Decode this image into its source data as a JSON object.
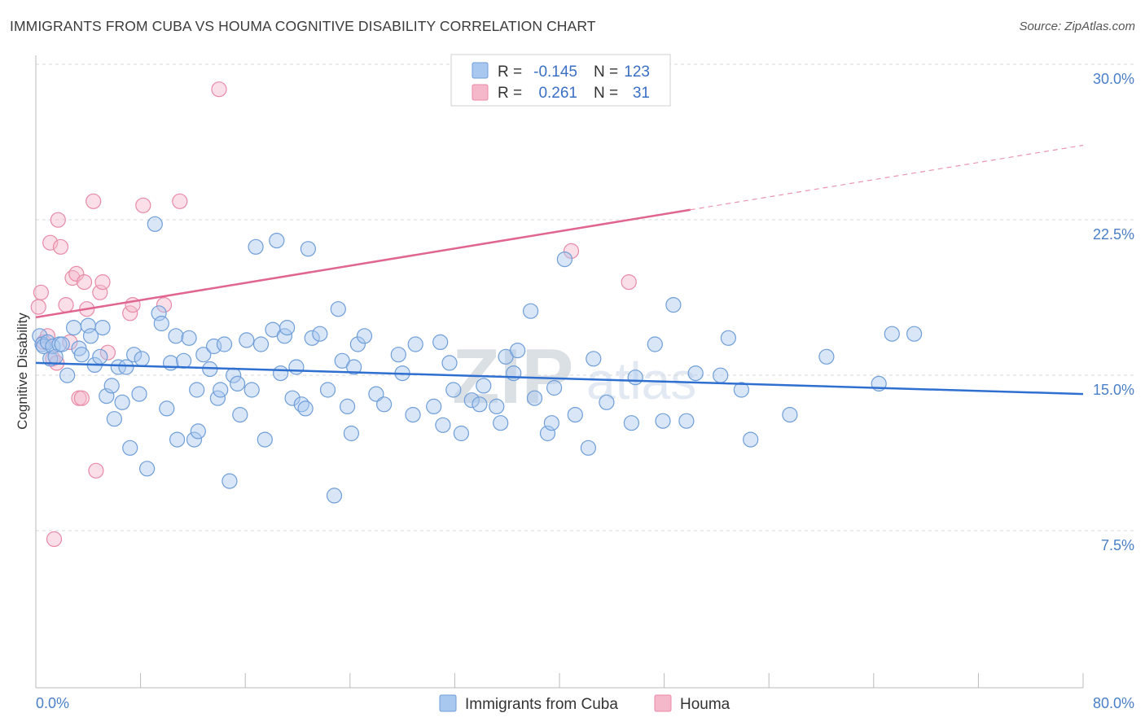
{
  "header": {
    "title": "IMMIGRANTS FROM CUBA VS HOUMA COGNITIVE DISABILITY CORRELATION CHART",
    "source": "Source: ZipAtlas.com"
  },
  "colors": {
    "blue_fill": "#a9c8f0",
    "blue_stroke": "#6f9ed8",
    "blue_line": "#2f6fd0",
    "pink_fill": "#f5b8cb",
    "pink_stroke": "#e88aa6",
    "pink_line": "#e06690",
    "grid": "#d8d8d8",
    "tick_text": "#4a7fc8"
  },
  "watermark": {
    "bold": "ZIP",
    "light": "atlas"
  },
  "chart_data": {
    "type": "scatter",
    "title": "IMMIGRANTS FROM CUBA VS HOUMA COGNITIVE DISABILITY CORRELATION CHART",
    "xlabel": "",
    "ylabel": "Cognitive Disability",
    "xlim": [
      0,
      80
    ],
    "ylim": [
      0,
      31.5
    ],
    "x_tick_labels": {
      "left": "0.0%",
      "right": "80.0%"
    },
    "y_ticks": [
      {
        "value": 30.0,
        "label": "30.0%"
      },
      {
        "value": 22.5,
        "label": "22.5%"
      },
      {
        "value": 15.0,
        "label": "15.0%"
      },
      {
        "value": 7.5,
        "label": "7.5%"
      }
    ],
    "legend": {
      "position": "top-center",
      "rows": [
        {
          "r_label": "R =",
          "r_value": "-0.145",
          "n_label": "N =",
          "n_value": "123"
        },
        {
          "r_label": "R =",
          "r_value": "0.261",
          "n_label": "N =",
          "n_value": "31"
        }
      ]
    },
    "series": [
      {
        "name": "Immigrants from Cuba",
        "trend": {
          "x": [
            0,
            80
          ],
          "y": [
            16.3,
            14.8
          ],
          "dashed_from": null
        },
        "points": [
          [
            0.3,
            17.6
          ],
          [
            0.5,
            17.2
          ],
          [
            0.6,
            17.1
          ],
          [
            0.9,
            17.3
          ],
          [
            1.1,
            16.5
          ],
          [
            1.3,
            17.1
          ],
          [
            1.5,
            16.6
          ],
          [
            1.8,
            17.2
          ],
          [
            2.0,
            17.2
          ],
          [
            2.4,
            15.7
          ],
          [
            2.9,
            18.0
          ],
          [
            3.3,
            17.0
          ],
          [
            3.5,
            16.7
          ],
          [
            4.0,
            18.1
          ],
          [
            4.2,
            17.6
          ],
          [
            4.5,
            16.2
          ],
          [
            4.9,
            16.6
          ],
          [
            5.1,
            18.0
          ],
          [
            5.4,
            14.7
          ],
          [
            5.8,
            15.2
          ],
          [
            6.0,
            13.6
          ],
          [
            6.3,
            16.1
          ],
          [
            6.6,
            14.4
          ],
          [
            6.9,
            16.1
          ],
          [
            7.2,
            12.2
          ],
          [
            7.5,
            16.7
          ],
          [
            7.9,
            14.8
          ],
          [
            8.1,
            16.5
          ],
          [
            8.5,
            11.2
          ],
          [
            9.1,
            23.0
          ],
          [
            9.4,
            18.7
          ],
          [
            9.6,
            18.2
          ],
          [
            10.0,
            14.1
          ],
          [
            10.3,
            16.3
          ],
          [
            10.7,
            17.6
          ],
          [
            10.8,
            12.6
          ],
          [
            11.3,
            16.4
          ],
          [
            11.7,
            17.5
          ],
          [
            12.1,
            12.6
          ],
          [
            12.3,
            15.0
          ],
          [
            12.4,
            13.0
          ],
          [
            12.8,
            16.7
          ],
          [
            13.3,
            16.0
          ],
          [
            13.6,
            17.1
          ],
          [
            13.9,
            14.6
          ],
          [
            14.1,
            15.0
          ],
          [
            14.4,
            17.2
          ],
          [
            14.8,
            10.6
          ],
          [
            15.1,
            15.7
          ],
          [
            15.4,
            15.3
          ],
          [
            15.6,
            13.8
          ],
          [
            16.1,
            17.4
          ],
          [
            16.5,
            15.0
          ],
          [
            16.8,
            21.9
          ],
          [
            17.2,
            17.2
          ],
          [
            17.5,
            12.6
          ],
          [
            18.1,
            17.9
          ],
          [
            18.4,
            22.2
          ],
          [
            18.7,
            15.8
          ],
          [
            19.0,
            17.6
          ],
          [
            19.2,
            18.0
          ],
          [
            19.6,
            14.6
          ],
          [
            19.9,
            16.1
          ],
          [
            20.3,
            14.3
          ],
          [
            20.6,
            14.1
          ],
          [
            20.8,
            21.8
          ],
          [
            21.1,
            17.5
          ],
          [
            21.7,
            17.7
          ],
          [
            22.3,
            15.0
          ],
          [
            22.8,
            9.9
          ],
          [
            23.1,
            18.9
          ],
          [
            23.4,
            16.4
          ],
          [
            23.8,
            14.2
          ],
          [
            24.1,
            12.9
          ],
          [
            24.3,
            16.1
          ],
          [
            24.6,
            17.2
          ],
          [
            25.1,
            17.6
          ],
          [
            26.0,
            14.8
          ],
          [
            26.6,
            14.3
          ],
          [
            27.7,
            16.7
          ],
          [
            28.0,
            15.8
          ],
          [
            28.8,
            13.8
          ],
          [
            29.0,
            17.2
          ],
          [
            30.4,
            14.2
          ],
          [
            30.9,
            17.3
          ],
          [
            31.1,
            13.3
          ],
          [
            31.6,
            16.3
          ],
          [
            31.9,
            15.0
          ],
          [
            32.5,
            12.9
          ],
          [
            33.3,
            14.5
          ],
          [
            33.9,
            14.3
          ],
          [
            34.2,
            15.2
          ],
          [
            35.2,
            14.2
          ],
          [
            35.5,
            13.4
          ],
          [
            35.9,
            16.6
          ],
          [
            36.5,
            15.8
          ],
          [
            36.8,
            16.9
          ],
          [
            37.8,
            18.8
          ],
          [
            38.1,
            14.6
          ],
          [
            39.1,
            12.9
          ],
          [
            39.4,
            13.4
          ],
          [
            39.6,
            15.1
          ],
          [
            40.4,
            21.3
          ],
          [
            41.2,
            13.8
          ],
          [
            42.2,
            12.2
          ],
          [
            42.6,
            16.5
          ],
          [
            43.6,
            14.4
          ],
          [
            45.5,
            13.4
          ],
          [
            45.8,
            15.6
          ],
          [
            47.3,
            17.2
          ],
          [
            47.9,
            13.5
          ],
          [
            48.7,
            19.1
          ],
          [
            49.7,
            13.5
          ],
          [
            50.4,
            15.8
          ],
          [
            52.3,
            15.7
          ],
          [
            52.9,
            17.5
          ],
          [
            53.9,
            15.0
          ],
          [
            54.6,
            12.6
          ],
          [
            57.6,
            13.8
          ],
          [
            60.4,
            16.6
          ],
          [
            64.4,
            15.3
          ],
          [
            65.4,
            17.7
          ],
          [
            67.1,
            17.7
          ]
        ]
      },
      {
        "name": "Houma",
        "trend": {
          "x": [
            0,
            80
          ],
          "y": [
            18.5,
            26.8
          ],
          "dashed_from": 50.0
        },
        "points": [
          [
            0.2,
            19.0
          ],
          [
            0.4,
            19.7
          ],
          [
            0.6,
            17.3
          ],
          [
            0.9,
            17.6
          ],
          [
            1.1,
            22.1
          ],
          [
            1.3,
            16.5
          ],
          [
            1.6,
            16.3
          ],
          [
            1.7,
            23.2
          ],
          [
            1.9,
            21.9
          ],
          [
            2.3,
            19.1
          ],
          [
            2.6,
            17.3
          ],
          [
            2.8,
            20.4
          ],
          [
            3.1,
            20.6
          ],
          [
            3.3,
            14.6
          ],
          [
            3.5,
            14.6
          ],
          [
            3.7,
            20.2
          ],
          [
            3.9,
            18.9
          ],
          [
            4.4,
            24.1
          ],
          [
            4.6,
            11.1
          ],
          [
            4.9,
            19.7
          ],
          [
            5.1,
            20.2
          ],
          [
            5.5,
            16.8
          ],
          [
            7.2,
            18.7
          ],
          [
            7.4,
            19.1
          ],
          [
            8.2,
            23.9
          ],
          [
            9.8,
            19.1
          ],
          [
            11.0,
            24.1
          ],
          [
            14.0,
            29.5
          ],
          [
            40.9,
            21.7
          ],
          [
            45.3,
            20.2
          ],
          [
            1.4,
            7.8
          ]
        ]
      }
    ]
  },
  "bottom_legend": [
    {
      "label": "Immigrants from Cuba",
      "color_key": "blue"
    },
    {
      "label": "Houma",
      "color_key": "pink"
    }
  ]
}
